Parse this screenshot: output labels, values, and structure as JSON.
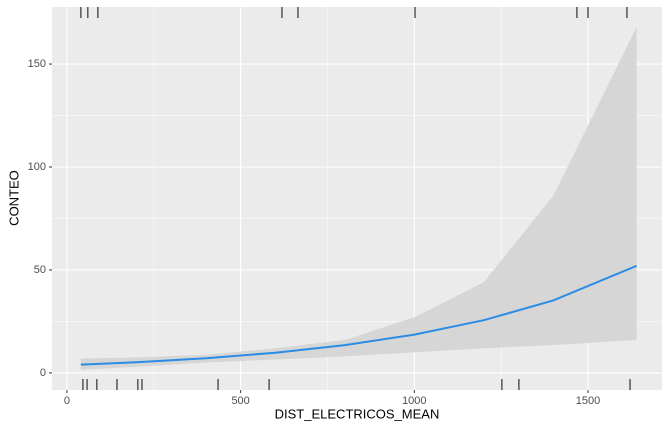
{
  "chart_data": {
    "type": "line",
    "x_label": "DIST_ELECTRICOS_MEAN",
    "y_label": "CONTEO",
    "x": [
      40,
      200,
      400,
      600,
      800,
      1000,
      1200,
      1400,
      1640
    ],
    "series": [
      {
        "color": "#2b8ce6",
        "band_color": "#d6d6d6",
        "values": [
          4.0,
          5.2,
          7.1,
          9.8,
          13.5,
          18.6,
          25.6,
          35.2,
          52
        ],
        "lower": [
          1.5,
          3,
          5,
          6.5,
          8,
          10,
          12,
          13.5,
          16
        ],
        "upper": [
          7,
          7.5,
          8.8,
          12,
          16,
          27,
          44,
          86,
          168
        ]
      }
    ],
    "rug_top": [
      40,
      60,
      89,
      619,
      665,
      1002,
      1468,
      1500,
      1612
    ],
    "rug_bottom": [
      46,
      58,
      86,
      144,
      204,
      216,
      435,
      582,
      1252,
      1301,
      1621
    ],
    "rug_color": "#555555",
    "xlim": [
      -43,
      1713
    ],
    "ylim": [
      -8.3,
      177.7
    ],
    "xticks": [
      0,
      500,
      1000,
      1500
    ],
    "yticks": [
      0,
      50,
      100,
      150
    ],
    "grid": true,
    "panel_color": "#ebebeb"
  }
}
